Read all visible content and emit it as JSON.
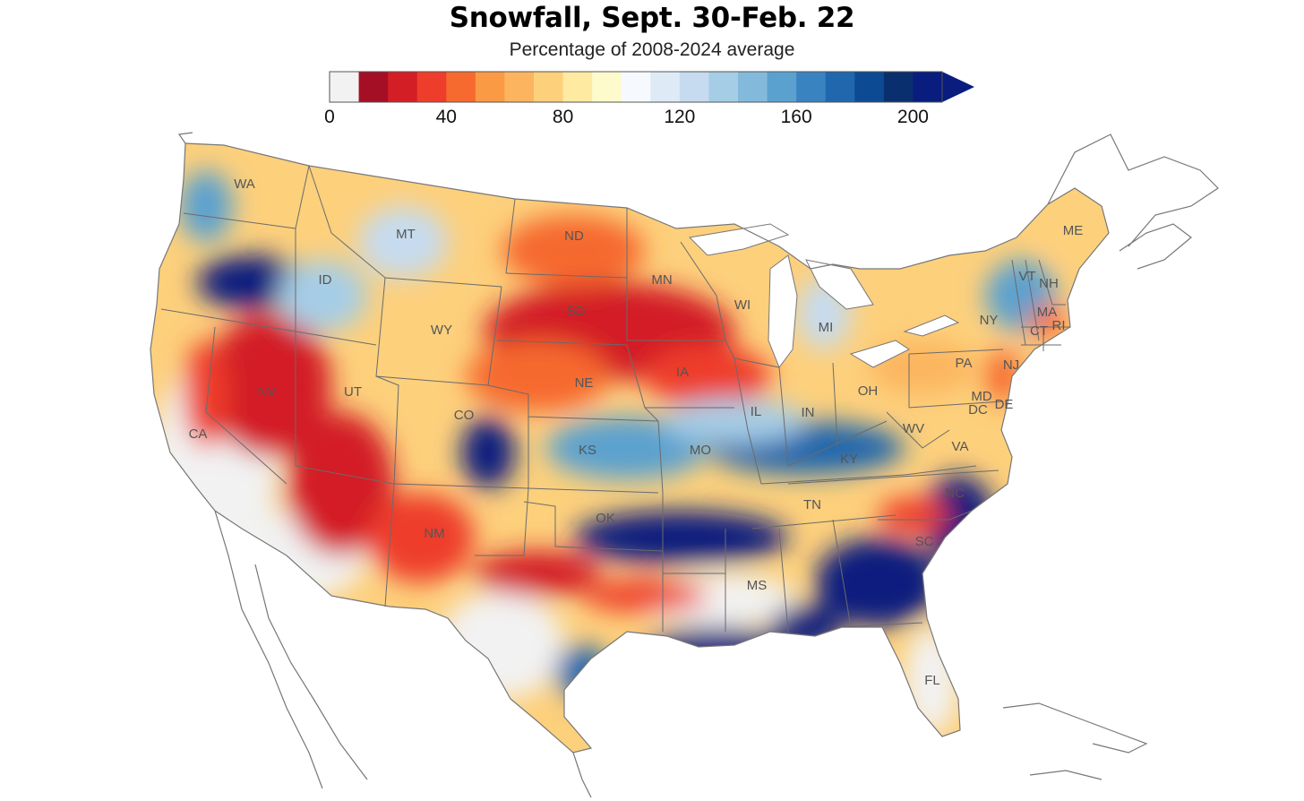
{
  "title": "Snowfall, Sept. 30-Feb. 22",
  "subtitle": "Percentage of 2008-2024 average",
  "legend": {
    "colors": [
      "#f2f2f2",
      "#a50f26",
      "#d31e25",
      "#ee3d2b",
      "#f6692f",
      "#fb9a45",
      "#fcb55e",
      "#fdd07c",
      "#feeaa0",
      "#fdfbcc",
      "#f6fafe",
      "#deebf7",
      "#c6dbef",
      "#a6cde6",
      "#83badb",
      "#5ba1cf",
      "#3983c0",
      "#2167ad",
      "#0c4a94",
      "#0a2f6e",
      "#081d7e"
    ],
    "ticks": [
      {
        "value": 0,
        "label": "0"
      },
      {
        "value": 40,
        "label": "40"
      },
      {
        "value": 80,
        "label": "80"
      },
      {
        "value": 120,
        "label": "120"
      },
      {
        "value": 160,
        "label": "160"
      },
      {
        "value": 200,
        "label": "200"
      }
    ],
    "arrow_color": "#081d7e"
  },
  "state_labels": [
    "WA",
    "MT",
    "ND",
    "ID",
    "MN",
    "ME",
    "SD",
    "WI",
    "MI",
    "VT",
    "NH",
    "WY",
    "NY",
    "MA",
    "CT",
    "RI",
    "NV",
    "UT",
    "PA",
    "NE",
    "IA",
    "NJ",
    "OH",
    "MD",
    "DC",
    "DE",
    "IL",
    "IN",
    "CA",
    "CO",
    "WV",
    "KS",
    "MO",
    "VA",
    "KY",
    "NC",
    "TN",
    "OK",
    "NM",
    "SC",
    "MS",
    "FL"
  ]
}
